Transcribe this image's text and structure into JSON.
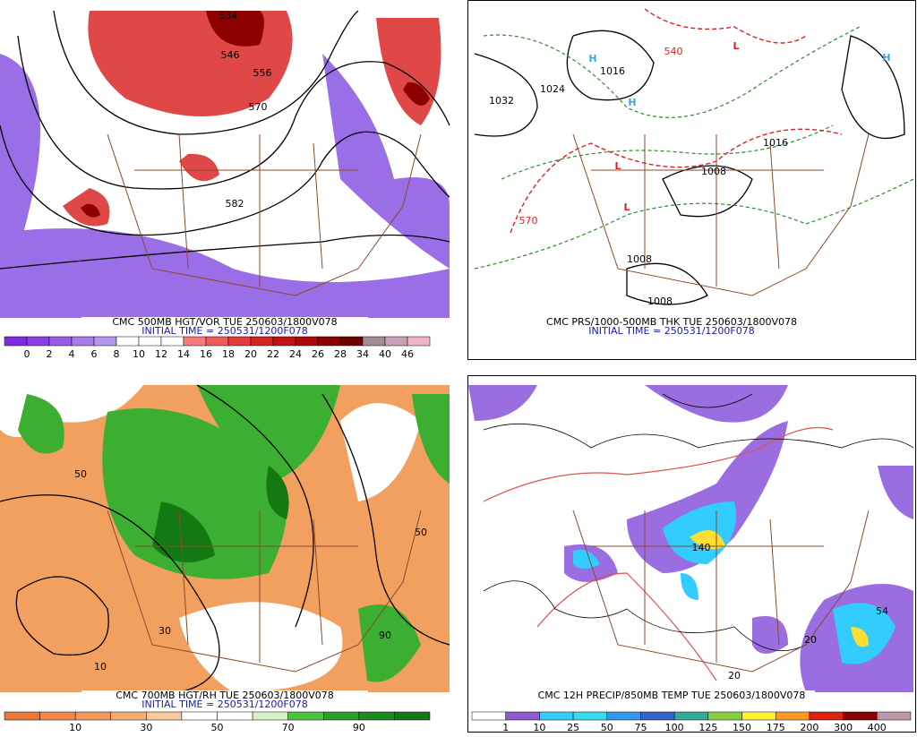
{
  "panels": [
    {
      "title": "CMC 500MB HGT/VOR TUE 250603/1800V078",
      "initial_time": "INITIAL TIME = 250531/1200F078",
      "colorbar": {
        "labels": [
          "0",
          "2",
          "4",
          "6",
          "8",
          "10",
          "12",
          "14",
          "16",
          "18",
          "20",
          "22",
          "24",
          "26",
          "28",
          "34",
          "40",
          "46"
        ],
        "colors": [
          "#7d2de0",
          "#8a3fe6",
          "#9a5be8",
          "#a97aec",
          "#b496f0",
          "#ffffff",
          "#ffffff",
          "#ffffff",
          "#f47c7c",
          "#ef5a5a",
          "#e23c3c",
          "#d42424",
          "#c01414",
          "#a80a0a",
          "#8c0000",
          "#6e0000",
          "#a08c96",
          "#c9a0b4",
          "#f0b4c8"
        ]
      },
      "map_labels": [
        "534",
        "546",
        "556",
        "570",
        "582"
      ]
    },
    {
      "title": "CMC PRS/1000-500MB THK TUE 250603/1800V078",
      "initial_time": "INITIAL TIME = 250531/1200F078",
      "colorbar": null,
      "map_labels": [
        "1032",
        "1016",
        "1024",
        "1008",
        "1016",
        "1008",
        "1008",
        "570",
        "540",
        "H",
        "H",
        "H",
        "L",
        "L",
        "L"
      ]
    },
    {
      "title": "CMC 700MB HGT/RH TUE 250603/1800V078",
      "initial_time": "INITIAL TIME = 250531/1200F078",
      "colorbar": {
        "labels": [
          "10",
          "30",
          "50",
          "70",
          "90"
        ],
        "colors": [
          "#e8793a",
          "#ee8a4a",
          "#f29a5c",
          "#f5ad75",
          "#f9c9a0",
          "#ffffff",
          "#ffffff",
          "#d7f0c8",
          "#4cc23c",
          "#2aa02a",
          "#1b8c1b",
          "#137a13"
        ]
      },
      "map_labels": [
        "50",
        "90",
        "10",
        "30",
        "50"
      ]
    },
    {
      "title": "CMC 12H PRECIP/850MB TEMP TUE 250603/1800V078",
      "initial_time": null,
      "colorbar": {
        "labels": [
          "1",
          "10",
          "25",
          "50",
          "75",
          "100",
          "125",
          "150",
          "175",
          "200",
          "300",
          "400"
        ],
        "colors": [
          "#ffffff",
          "#8c5ccc",
          "#33ccff",
          "#33ddee",
          "#3399ee",
          "#3366cc",
          "#33aa99",
          "#88cc44",
          "#ffee33",
          "#ff9922",
          "#dd2211",
          "#880000",
          "#bb99aa"
        ]
      },
      "map_labels": [
        "20",
        "140",
        "20",
        "54"
      ]
    }
  ]
}
